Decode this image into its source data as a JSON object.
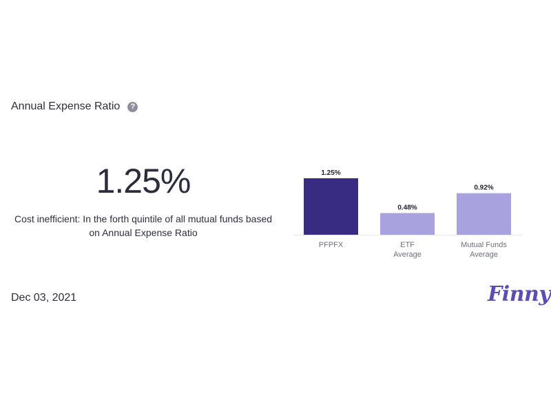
{
  "section": {
    "title": "Annual Expense Ratio",
    "help_icon_glyph": "?"
  },
  "summary": {
    "value": "1.25%",
    "description": "Cost inefficient: In the forth quintile of all mutual funds based on Annual Expense Ratio"
  },
  "footer": {
    "date": "Dec 03, 2021",
    "logo": "Finny"
  },
  "colors": {
    "highlight_bar": "#372c82",
    "comparison_bar": "#a8a2de",
    "baseline": "#e3e3ea",
    "logo": "#5c4db0"
  },
  "chart_data": {
    "type": "bar",
    "categories": [
      [
        "PFPFX"
      ],
      [
        "ETF",
        "Average"
      ],
      [
        "Mutual Funds",
        "Average"
      ]
    ],
    "values": [
      1.25,
      0.48,
      0.92
    ],
    "value_labels": [
      "1.25%",
      "0.48%",
      "0.92%"
    ],
    "ylim": [
      0,
      1.25
    ],
    "grid": false,
    "highlight_index": 0
  }
}
